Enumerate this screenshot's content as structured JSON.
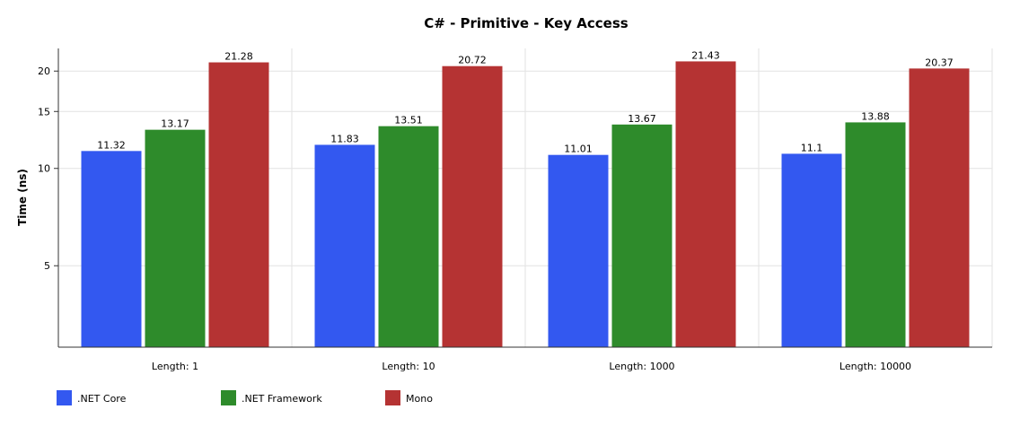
{
  "chart_data": {
    "type": "bar",
    "title": "C# - Primitive -  Key Access",
    "ylabel": "Time (ns)",
    "xlabel": "",
    "y_scale": "log",
    "ylim": [
      2.8,
      23.5
    ],
    "y_ticks": [
      5,
      10,
      15,
      20
    ],
    "grid": true,
    "legend_position": "bottom-left",
    "categories": [
      "Length: 1",
      "Length: 10",
      "Length: 1000",
      "Length: 10000"
    ],
    "series": [
      {
        "name": ".NET Core",
        "color": "#3358f0",
        "values": [
          11.32,
          11.83,
          11.01,
          11.1
        ],
        "labels": [
          "11.32",
          "11.83",
          "11.01",
          "11.1"
        ]
      },
      {
        "name": ".NET Framework",
        "color": "#2e8b2b",
        "values": [
          13.17,
          13.51,
          13.67,
          13.88
        ],
        "labels": [
          "13.17",
          "13.51",
          "13.67",
          "13.88"
        ]
      },
      {
        "name": "Mono",
        "color": "#b53333",
        "values": [
          21.28,
          20.72,
          21.43,
          20.37
        ],
        "labels": [
          "21.28",
          "20.72",
          "21.43",
          "20.37"
        ]
      }
    ]
  }
}
